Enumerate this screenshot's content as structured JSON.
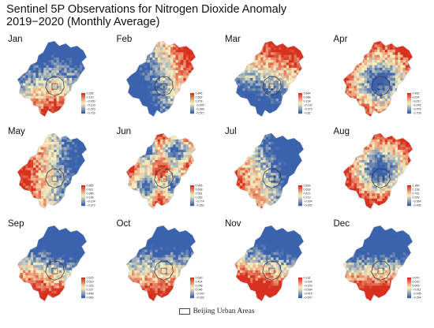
{
  "title_line1": "Sentinel 5P Observations for Nitrogen Dioxide Anomaly",
  "title_line2": "2019−2020 (Monthly Average)",
  "legend_label": "Beijing Urban Areas",
  "colors": {
    "low": "#3b62ad",
    "mid": "#fbf3c0",
    "high": "#d7301f",
    "urban_outline": "#333333"
  },
  "months": [
    {
      "name": "Jan",
      "ticks": [
        "0.268",
        "0.133",
        "−0.000",
        "−0.133",
        "−0.220",
        "−0.716"
      ],
      "pattern": "south_hot"
    },
    {
      "name": "Feb",
      "ticks": [
        "0.846",
        "0.562",
        "0.278",
        "−0.005",
        "−0.289",
        "−0.572"
      ],
      "pattern": "east_hot"
    },
    {
      "name": "Mar",
      "ticks": [
        "0.644",
        "0.388",
        "0.134",
        "−0.120",
        "−0.375",
        "−0.62"
      ],
      "pattern": "north_hot"
    },
    {
      "name": "Apr",
      "ticks": [
        "0.452",
        "0.224",
        "−0.017",
        "−0.242",
        "−0.476",
        "−0.709"
      ],
      "pattern": "edge_hot"
    },
    {
      "name": "May",
      "ticks": [
        "0.855",
        "0.611",
        "0.366",
        "0.136",
        "−0.134",
        "−0.372"
      ],
      "pattern": "west_hot"
    },
    {
      "name": "Jun",
      "ticks": [
        "0.926",
        "0.638",
        "0.351",
        "0.063",
        "−0.774",
        "−0.262"
      ],
      "pattern": "mixed"
    },
    {
      "name": "Jul",
      "ticks": [
        "0.826",
        "0.618",
        "0.421",
        "0.213",
        "−0.004",
        "−0.002"
      ],
      "pattern": "west_warm"
    },
    {
      "name": "Aug",
      "ticks": [
        "1.389",
        "1.128",
        "0.761",
        "0.399",
        "−0.064",
        "−0.430"
      ],
      "pattern": "edge_hot2"
    },
    {
      "name": "Sep",
      "ticks": [
        "0.615",
        "0.523",
        "0.315",
        "0.217",
        "0.448",
        "0.063"
      ],
      "pattern": "south_hot2"
    },
    {
      "name": "Oct",
      "ticks": [
        "0.630",
        "0.424",
        "0.248",
        "0.046",
        "−0.142",
        "−0.333"
      ],
      "pattern": "south_warm"
    },
    {
      "name": "Nov",
      "ticks": [
        "0.118",
        "−0.024",
        "−0.153",
        "−0.284",
        "−0.415",
        "−0.547"
      ],
      "pattern": "south_hot3"
    },
    {
      "name": "Dec",
      "ticks": [
        "0.070",
        "0.016",
        "0.005",
        "−0.011",
        "−0.035",
        "−0.054"
      ],
      "pattern": "south_hot4"
    }
  ]
}
